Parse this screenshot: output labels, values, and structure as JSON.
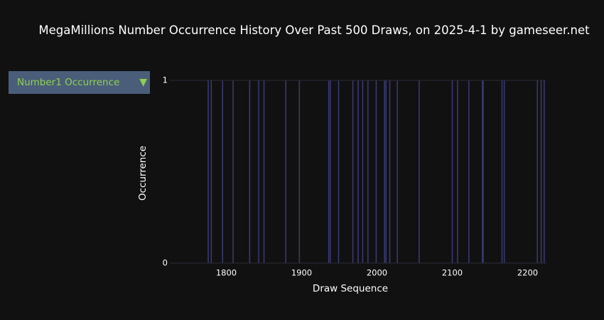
{
  "title": "MegaMillions Number Occurrence History Over Past 500 Draws, on 2025-4-1 by gameseer.net",
  "dropdown": {
    "selected": "Number1 Occurrence",
    "arrow_icon": "triangle-down-icon"
  },
  "colors": {
    "background": "#111111",
    "bar": "#3a3a7a",
    "accent": "#8fd14f",
    "dropdown_bg": "#4a5e7a"
  },
  "chart_data": {
    "type": "bar",
    "title": "MegaMillions Number Occurrence History Over Past 500 Draws, on 2025-4-1 by gameseer.net",
    "xlabel": "Draw Sequence",
    "ylabel": "Occurrence",
    "xlim": [
      1725,
      2225
    ],
    "ylim": [
      0,
      1
    ],
    "xticks": [
      1800,
      1900,
      2000,
      2100,
      2200
    ],
    "yticks": [
      0,
      1
    ],
    "grid": false,
    "x": [
      1776,
      1780,
      1795,
      1809,
      1831,
      1843,
      1850,
      1879,
      1897,
      1936,
      1938,
      1949,
      1968,
      1975,
      1981,
      1988,
      1999,
      2010,
      2012,
      2017,
      2027,
      2056,
      2100,
      2107,
      2122,
      2140,
      2141,
      2166,
      2169,
      2213,
      2218,
      2222
    ],
    "values": [
      1,
      1,
      1,
      1,
      1,
      1,
      1,
      1,
      1,
      1,
      1,
      1,
      1,
      1,
      1,
      1,
      1,
      1,
      1,
      1,
      1,
      1,
      1,
      1,
      1,
      1,
      1,
      1,
      1,
      1,
      1,
      1
    ]
  }
}
